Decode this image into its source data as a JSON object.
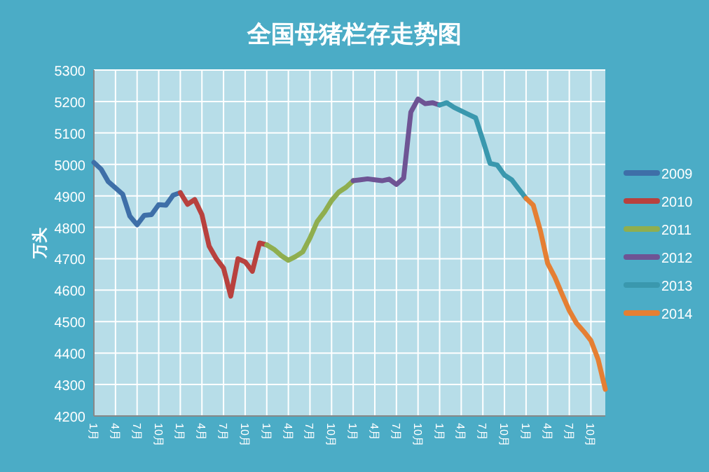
{
  "chart_data": {
    "type": "line",
    "title": "全国母猪栏存走势图",
    "ylabel": "万头",
    "categories": [
      "1月",
      null,
      null,
      "4月",
      null,
      null,
      "7月",
      null,
      null,
      "10月",
      null,
      null,
      "1月",
      null,
      null,
      "4月",
      null,
      null,
      "7月",
      null,
      null,
      "10月",
      null,
      null,
      "1月",
      null,
      null,
      "4月",
      null,
      null,
      "7月",
      null,
      null,
      "10月",
      null,
      null,
      "1月",
      null,
      null,
      "4月",
      null,
      null,
      "7月",
      null,
      null,
      "10月",
      null,
      null,
      "1月",
      null,
      null,
      "4月",
      null,
      null,
      "7月",
      null,
      null,
      "10月",
      null,
      null,
      "1月",
      null,
      null,
      "4月",
      null,
      null,
      "7月",
      null,
      null,
      "10月",
      null,
      null
    ],
    "series": [
      {
        "name": "2009",
        "color": "#3e6fa8",
        "values": [
          5006,
          4985,
          4945,
          4925,
          4905,
          4835,
          4808,
          4838,
          4840,
          4872,
          4870,
          4902,
          4910,
          null,
          null,
          null,
          null,
          null,
          null,
          null,
          null,
          null,
          null,
          null,
          null,
          null,
          null,
          null,
          null,
          null,
          null,
          null,
          null,
          null,
          null,
          null,
          null,
          null,
          null,
          null,
          null,
          null,
          null,
          null,
          null,
          null,
          null,
          null,
          null,
          null,
          null,
          null,
          null,
          null,
          null,
          null,
          null,
          null,
          null,
          null,
          null,
          null,
          null,
          null,
          null,
          null,
          null,
          null,
          null,
          null,
          null,
          null
        ]
      },
      {
        "name": "2010",
        "color": "#b8413e",
        "values": [
          null,
          null,
          null,
          null,
          null,
          null,
          null,
          null,
          null,
          null,
          null,
          null,
          4910,
          4873,
          4888,
          4840,
          4740,
          4700,
          4670,
          4581,
          4700,
          4690,
          4660,
          4750,
          4744,
          null,
          null,
          null,
          null,
          null,
          null,
          null,
          null,
          null,
          null,
          null,
          null,
          null,
          null,
          null,
          null,
          null,
          null,
          null,
          null,
          null,
          null,
          null,
          null,
          null,
          null,
          null,
          null,
          null,
          null,
          null,
          null,
          null,
          null,
          null,
          null,
          null,
          null,
          null,
          null,
          null,
          null,
          null,
          null,
          null,
          null,
          null
        ]
      },
      {
        "name": "2011",
        "color": "#8fae4f",
        "values": [
          null,
          null,
          null,
          null,
          null,
          null,
          null,
          null,
          null,
          null,
          null,
          null,
          null,
          null,
          null,
          null,
          null,
          null,
          null,
          null,
          null,
          null,
          null,
          null,
          4744,
          4730,
          4710,
          4695,
          4707,
          4722,
          4766,
          4818,
          4848,
          4885,
          4912,
          4927,
          4948,
          null,
          null,
          null,
          null,
          null,
          null,
          null,
          null,
          null,
          null,
          null,
          null,
          null,
          null,
          null,
          null,
          null,
          null,
          null,
          null,
          null,
          null,
          null,
          null,
          null,
          null,
          null,
          null,
          null,
          null,
          null,
          null,
          null,
          null,
          null
        ]
      },
      {
        "name": "2012",
        "color": "#6e5494",
        "values": [
          null,
          null,
          null,
          null,
          null,
          null,
          null,
          null,
          null,
          null,
          null,
          null,
          null,
          null,
          null,
          null,
          null,
          null,
          null,
          null,
          null,
          null,
          null,
          null,
          null,
          null,
          null,
          null,
          null,
          null,
          null,
          null,
          null,
          null,
          null,
          null,
          4948,
          4951,
          4954,
          4951,
          4948,
          4953,
          4936,
          4956,
          5166,
          5208,
          5193,
          5196,
          5189,
          null,
          null,
          null,
          null,
          null,
          null,
          null,
          null,
          null,
          null,
          null,
          null,
          null,
          null,
          null,
          null,
          null,
          null,
          null,
          null,
          null,
          null,
          null
        ]
      },
      {
        "name": "2013",
        "color": "#3a98ae",
        "values": [
          null,
          null,
          null,
          null,
          null,
          null,
          null,
          null,
          null,
          null,
          null,
          null,
          null,
          null,
          null,
          null,
          null,
          null,
          null,
          null,
          null,
          null,
          null,
          null,
          null,
          null,
          null,
          null,
          null,
          null,
          null,
          null,
          null,
          null,
          null,
          null,
          null,
          null,
          null,
          null,
          null,
          null,
          null,
          null,
          null,
          null,
          null,
          null,
          5189,
          5196,
          5181,
          5170,
          5159,
          5148,
          5077,
          5003,
          4998,
          4966,
          4951,
          4921,
          4892,
          null,
          null,
          null,
          null,
          null,
          null,
          null,
          null,
          null,
          null,
          null
        ]
      },
      {
        "name": "2014",
        "color": "#e57f33",
        "values": [
          null,
          null,
          null,
          null,
          null,
          null,
          null,
          null,
          null,
          null,
          null,
          null,
          null,
          null,
          null,
          null,
          null,
          null,
          null,
          null,
          null,
          null,
          null,
          null,
          null,
          null,
          null,
          null,
          null,
          null,
          null,
          null,
          null,
          null,
          null,
          null,
          null,
          null,
          null,
          null,
          null,
          null,
          null,
          null,
          null,
          null,
          null,
          null,
          null,
          null,
          null,
          null,
          null,
          null,
          null,
          null,
          null,
          null,
          null,
          null,
          4892,
          4870,
          4788,
          4685,
          4641,
          4587,
          4535,
          4495,
          4469,
          4440,
          4380,
          4285
        ]
      }
    ],
    "ylim": [
      4200,
      5300
    ],
    "yticks": [
      4200,
      4300,
      4400,
      4500,
      4600,
      4700,
      4800,
      4900,
      5000,
      5100,
      5200,
      5300
    ],
    "grid": true,
    "legend": "right"
  }
}
